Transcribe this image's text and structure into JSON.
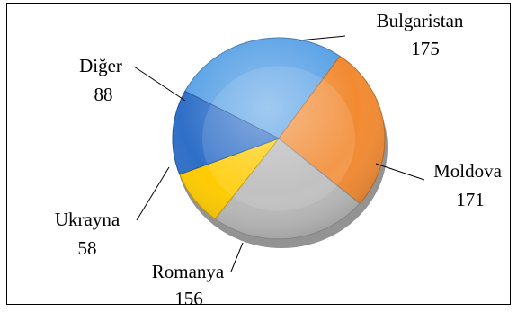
{
  "chart_data": {
    "type": "pie",
    "title": "",
    "series": [
      {
        "categories": [
          "Bulgaristan",
          "Moldova",
          "Romanya",
          "Ukrayna",
          "Diğer"
        ],
        "values": [
          175,
          171,
          156,
          58,
          88
        ]
      }
    ],
    "colors": [
      "#5aa2e6",
      "#f28a32",
      "#b9b9b9",
      "#ffcb00",
      "#2f6fc8"
    ],
    "labels_text": [
      {
        "name": "Bulgaristan",
        "value": "175"
      },
      {
        "name": "Moldova",
        "value": "171"
      },
      {
        "name": "Romanya",
        "value": "156"
      },
      {
        "name": "Ukrayna",
        "value": "58"
      },
      {
        "name": "Diğer",
        "value": "88"
      }
    ],
    "legend": "none",
    "grid": false
  }
}
